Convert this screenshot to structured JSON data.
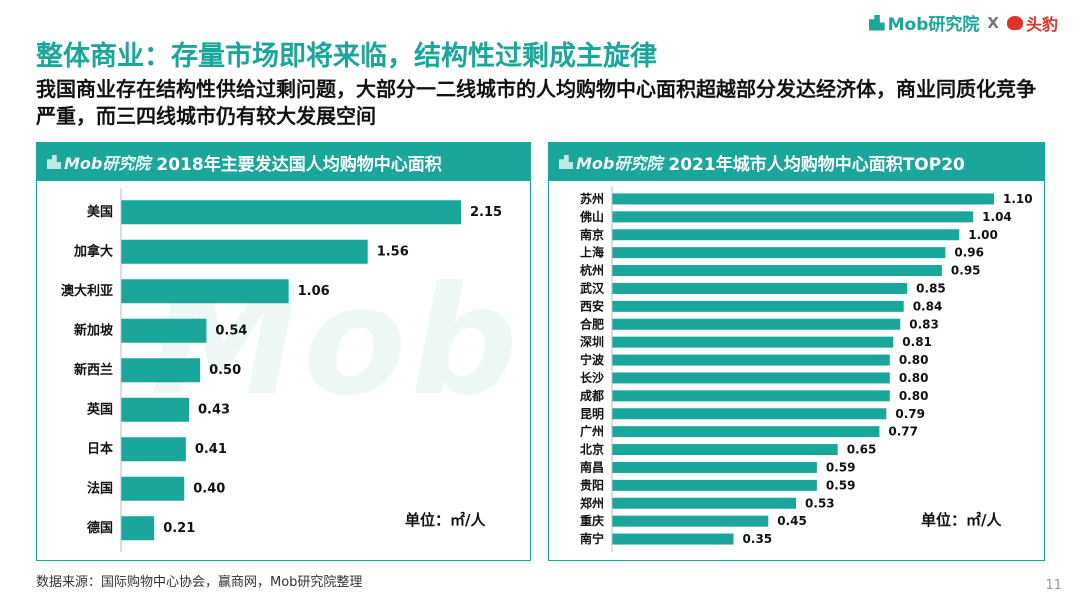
{
  "header": {
    "brand_mob": "Mob研究院",
    "brand_sep": "X",
    "brand_partner": "头豹"
  },
  "title": "整体商业：存量市场即将来临，结构性过剩成主旋律",
  "subtitle": "我国商业存在结构性供给过剩问题，大部分一二线城市的人均购物中心面积超越部分发达经济体，商业同质化竞争严重，而三四线城市仍有较大发展空间",
  "watermark": "Mob",
  "panels": {
    "left": {
      "brand": "Mob研究院",
      "title": "2018年主要发达国人均购物中心面积",
      "unit": "单位：㎡/人"
    },
    "right": {
      "brand": "Mob研究院",
      "title": "2021年城市人均购物中心面积TOP20",
      "unit": "单位：㎡/人"
    }
  },
  "colors": {
    "accent": "#1aa69a",
    "bar": "#1aa69a"
  },
  "chart_data": [
    {
      "type": "bar",
      "orientation": "horizontal",
      "title": "2018年主要发达国人均购物中心面积",
      "categories": [
        "美国",
        "加拿大",
        "澳大利亚",
        "新加坡",
        "新西兰",
        "英国",
        "日本",
        "法国",
        "德国"
      ],
      "values": [
        2.15,
        1.56,
        1.06,
        0.54,
        0.5,
        0.43,
        0.41,
        0.4,
        0.21
      ],
      "labels": [
        "2.15",
        "1.56",
        "1.06",
        "0.54",
        "0.50",
        "0.43",
        "0.41",
        "0.40",
        "0.21"
      ],
      "xlim": [
        0,
        2.15
      ],
      "grid": false,
      "legend": "none"
    },
    {
      "type": "bar",
      "orientation": "horizontal",
      "title": "2021年城市人均购物中心面积TOP20",
      "categories": [
        "苏州",
        "佛山",
        "南京",
        "上海",
        "杭州",
        "武汉",
        "西安",
        "合肥",
        "深圳",
        "宁波",
        "长沙",
        "成都",
        "昆明",
        "广州",
        "北京",
        "南昌",
        "贵阳",
        "郑州",
        "重庆",
        "南宁"
      ],
      "values": [
        1.1,
        1.04,
        1.0,
        0.96,
        0.95,
        0.85,
        0.84,
        0.83,
        0.81,
        0.8,
        0.8,
        0.8,
        0.79,
        0.77,
        0.65,
        0.59,
        0.59,
        0.53,
        0.45,
        0.35
      ],
      "labels": [
        "1.10",
        "1.04",
        "1.00",
        "0.96",
        "0.95",
        "0.85",
        "0.84",
        "0.83",
        "0.81",
        "0.80",
        "0.80",
        "0.80",
        "0.79",
        "0.77",
        "0.65",
        "0.59",
        "0.59",
        "0.53",
        "0.45",
        "0.35"
      ],
      "xlim": [
        0,
        1.1
      ],
      "grid": false,
      "legend": "none"
    }
  ],
  "source": "数据来源：国际购物中心协会，赢商网，Mob研究院整理",
  "page_number": "11"
}
